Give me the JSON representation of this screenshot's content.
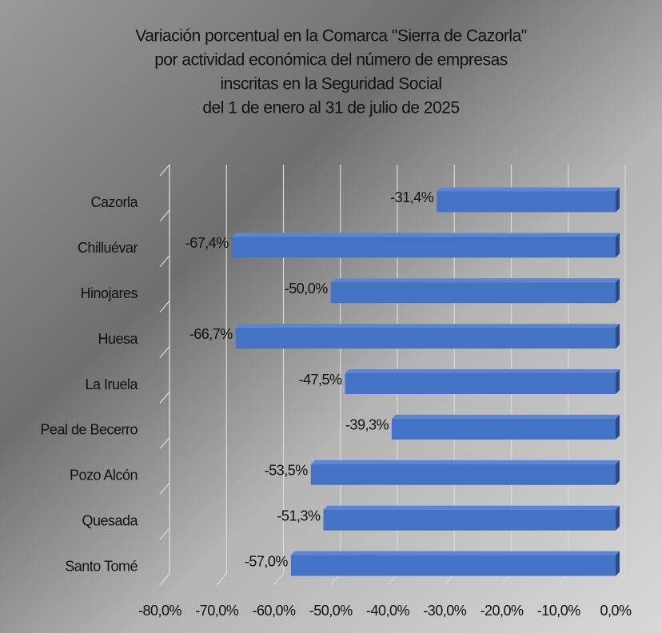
{
  "chart_data": {
    "type": "bar",
    "orientation": "horizontal",
    "title": [
      "Variación porcentual en la Comarca \"Sierra de Cazorla\"",
      "por actividad económica del número de empresas",
      "inscritas en la Seguridad Social",
      "del 1 de enero al 31 de julio de 2025"
    ],
    "categories": [
      "Cazorla",
      "Chilluévar",
      "Hinojares",
      "Huesa",
      "La Iruela",
      "Peal de Becerro",
      "Pozo Alcón",
      "Quesada",
      "Santo Tomé"
    ],
    "values": [
      -31.4,
      -67.4,
      -50.0,
      -66.7,
      -47.5,
      -39.3,
      -53.5,
      -51.3,
      -57.0
    ],
    "value_labels": [
      "-31,4%",
      "-67,4%",
      "-50,0%",
      "-66,7%",
      "-47,5%",
      "-39,3%",
      "-53,5%",
      "-51,3%",
      "-57,0%"
    ],
    "color": "#4472c4",
    "xlim": [
      -80,
      0
    ],
    "xticks": [
      {
        "value": -80,
        "label": "-80,0%"
      },
      {
        "value": -70,
        "label": "-70,0%"
      },
      {
        "value": -60,
        "label": "-60,0%"
      },
      {
        "value": -50,
        "label": "-50,0%"
      },
      {
        "value": -40,
        "label": "-40,0%"
      },
      {
        "value": -30,
        "label": "-30,0%"
      },
      {
        "value": -20,
        "label": "-20,0%"
      },
      {
        "value": -10,
        "label": "-10,0%"
      },
      {
        "value": 0,
        "label": "0,0%"
      }
    ],
    "grid": true
  }
}
